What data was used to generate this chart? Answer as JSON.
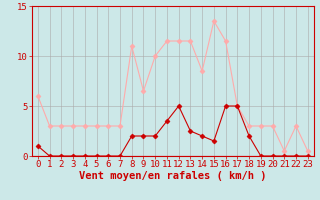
{
  "hours": [
    0,
    1,
    2,
    3,
    4,
    5,
    6,
    7,
    8,
    9,
    10,
    11,
    12,
    13,
    14,
    15,
    16,
    17,
    18,
    19,
    20,
    21,
    22,
    23
  ],
  "vent_moyen": [
    1,
    0,
    0,
    0,
    0,
    0,
    0,
    0,
    2,
    2,
    2,
    3.5,
    5,
    2.5,
    2,
    1.5,
    5,
    5,
    2,
    0,
    0,
    0,
    0,
    0
  ],
  "rafales": [
    6,
    3,
    3,
    3,
    3,
    3,
    3,
    3,
    11,
    6.5,
    10,
    11.5,
    11.5,
    11.5,
    8.5,
    13.5,
    11.5,
    5,
    3,
    3,
    3,
    0.5,
    3,
    0.5
  ],
  "background_color": "#cce8e8",
  "grid_color": "#aaaaaa",
  "line_color_moyen": "#cc0000",
  "line_color_rafales": "#ffaaaa",
  "xlabel": "Vent moyen/en rafales ( km/h )",
  "ylim": [
    0,
    15
  ],
  "yticks": [
    0,
    5,
    10,
    15
  ],
  "tick_fontsize": 6.5,
  "xlabel_fontsize": 7.5
}
